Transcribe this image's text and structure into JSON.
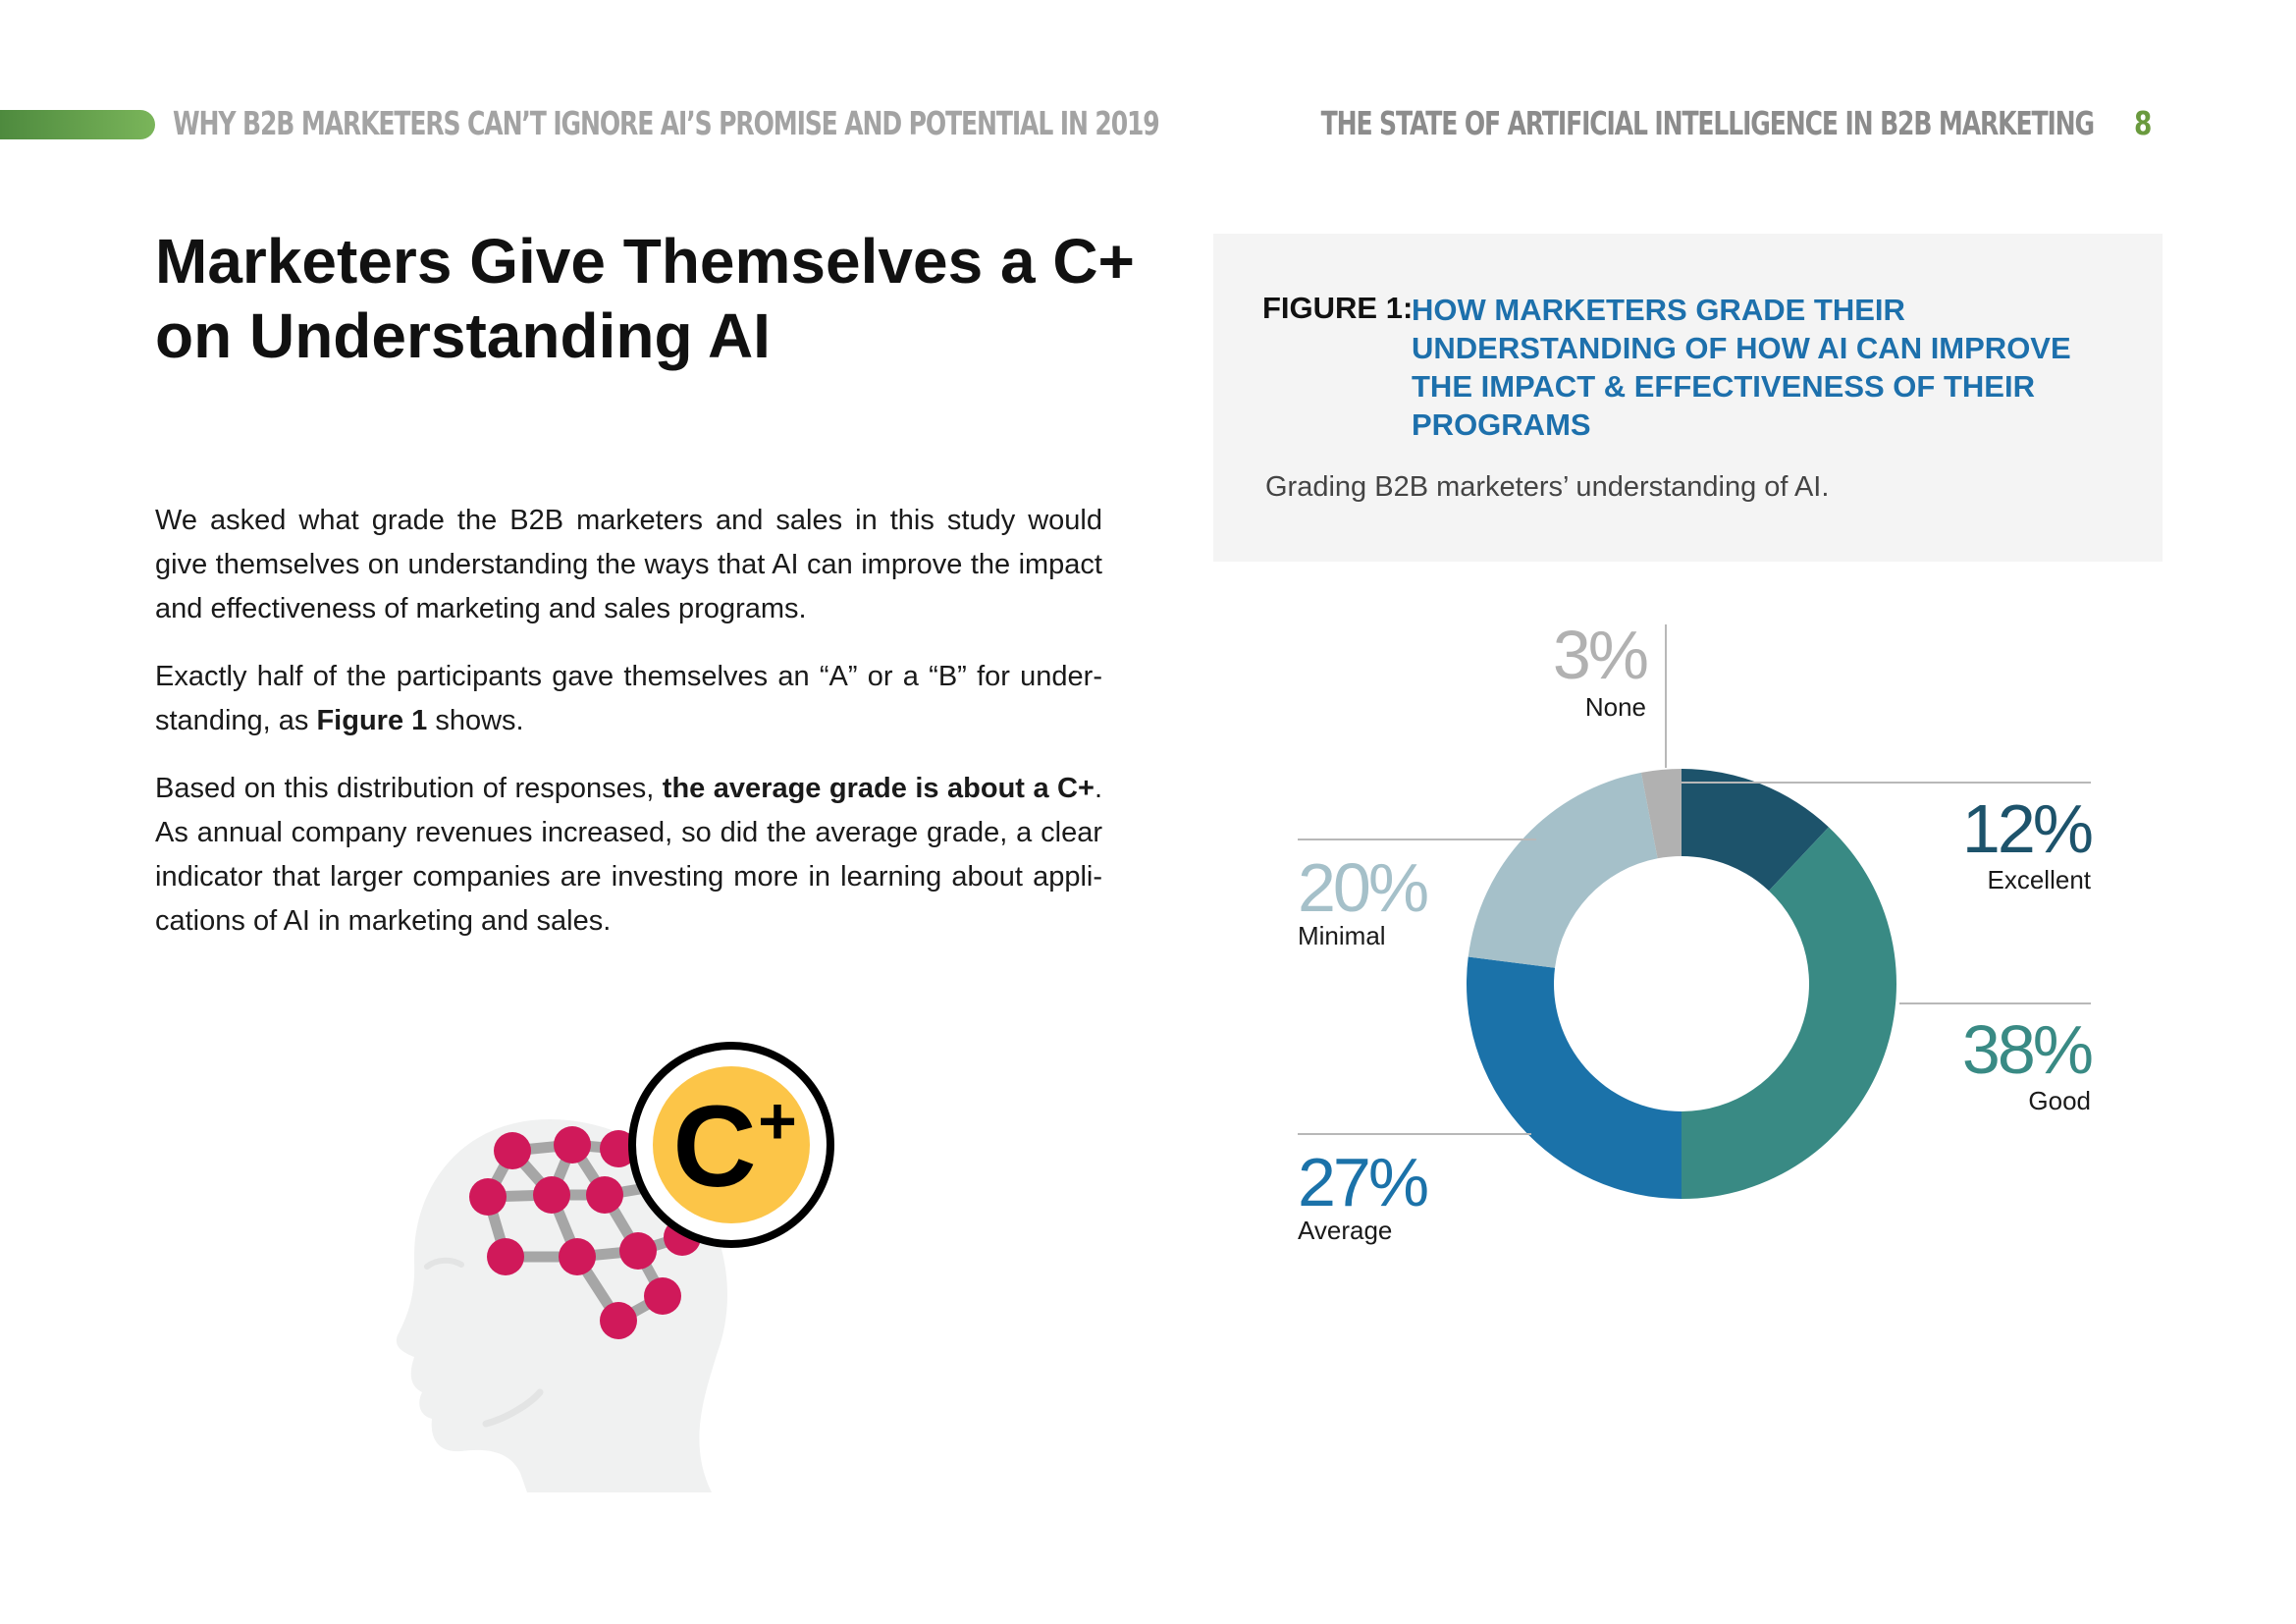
{
  "header": {
    "left_text": "WHY B2B MARKETERS CAN’T IGNORE AI’S PROMISE AND POTENTIAL IN 2019",
    "right_text": "THE STATE OF ARTIFICIAL INTELLIGENCE IN B2B MARKETING",
    "page_number": "8"
  },
  "title": {
    "line1": "Marketers Give Themselves a C+",
    "line2": "on Understanding AI"
  },
  "body": {
    "p1": "We asked what grade the B2B marketers and sales in this study would give themselves on understanding the ways that AI can improve the impact and effectiveness of marketing and sales programs.",
    "p2_a": "Exactly half of the participants gave themselves an “A” or a “B” for under-standing, as ",
    "p2_bold": "Figure 1",
    "p2_b": " shows.",
    "p3_a": "Based on this distribution of responses, ",
    "p3_bold": "the average grade is about a C+",
    "p3_b": ". As annual company revenues increased, so did the average grade, a clear indicator that larger companies are investing more in learning about appli-cations of AI in marketing and sales."
  },
  "figure": {
    "label": "FIGURE 1:",
    "title": "HOW MARKETERS GRADE THEIR UNDERSTANDING OF HOW AI CAN IMPROVE THE IMPACT & EFFECTIVENESS OF THEIR PROGRAMS",
    "caption": "Grading B2B marketers’ understanding of AI."
  },
  "illustration": {
    "badge_letter": "C",
    "badge_sign": "+"
  },
  "chart_data": {
    "type": "pie",
    "variant": "donut",
    "categories": [
      "Excellent",
      "Good",
      "Average",
      "Minimal",
      "None"
    ],
    "values": [
      12,
      38,
      27,
      20,
      3
    ],
    "value_labels": [
      "12%",
      "38%",
      "27%",
      "20%",
      "3%"
    ],
    "colors": [
      "#1d536b",
      "#398a84",
      "#1b72a9",
      "#a5c0c9",
      "#b1b1b1"
    ],
    "unit": "%",
    "legend": "none"
  }
}
